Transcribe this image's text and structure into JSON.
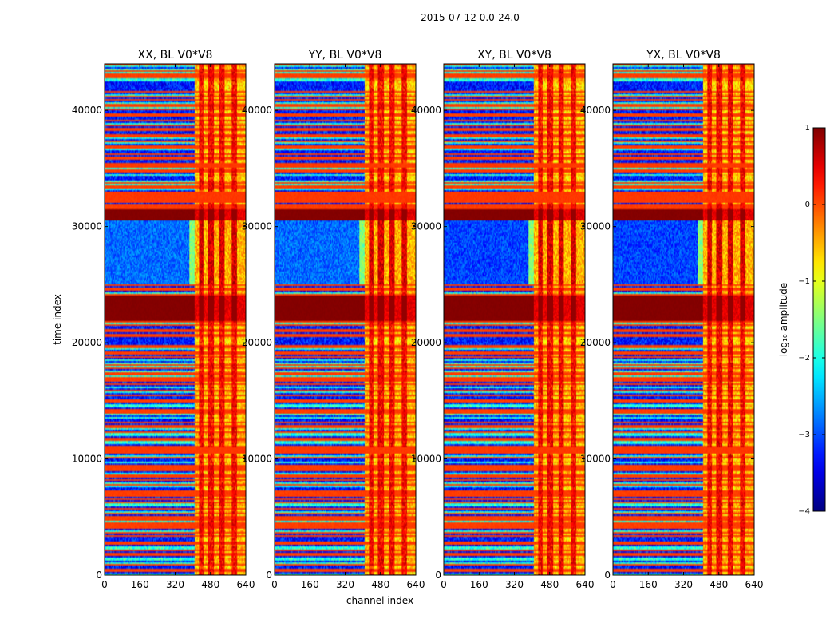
{
  "figure": {
    "suptitle": "2015-07-12 0.0-24.0"
  },
  "chart_data": {
    "type": "heatmap",
    "xlabel": "channel index",
    "ylabel": "time index",
    "xlim": [
      0,
      640
    ],
    "ylim": [
      0,
      44000
    ],
    "xticks": [
      0,
      160,
      320,
      480,
      640
    ],
    "yticks": [
      0,
      10000,
      20000,
      30000,
      40000
    ],
    "panels": [
      {
        "title": "XX, BL V0*V8",
        "polarization": "XX"
      },
      {
        "title": "YY, BL V0*V8",
        "polarization": "YY"
      },
      {
        "title": "XY, BL V0*V8",
        "polarization": "XY"
      },
      {
        "title": "YX, BL V0*V8",
        "polarization": "YX"
      }
    ],
    "colorbar": {
      "label": "log₁₀ amplitude",
      "range": [
        -4,
        1
      ],
      "ticks": [
        -4,
        -3,
        -2,
        -1,
        0,
        1
      ],
      "colormap": "jet"
    },
    "structure": {
      "channel_boundary": 410,
      "bright_channel_bands": [
        [
          430,
          450
        ],
        [
          470,
          495
        ],
        [
          520,
          545
        ],
        [
          575,
          600
        ]
      ],
      "rfi_row_bands": [
        [
          21800,
          24000
        ],
        [
          30500,
          31500
        ]
      ],
      "quiet_band": [
        25000,
        30500
      ],
      "flagged_band_rows": [
        [
          32000,
          33000
        ],
        [
          35000,
          35500
        ],
        [
          10500,
          11000
        ]
      ]
    }
  }
}
